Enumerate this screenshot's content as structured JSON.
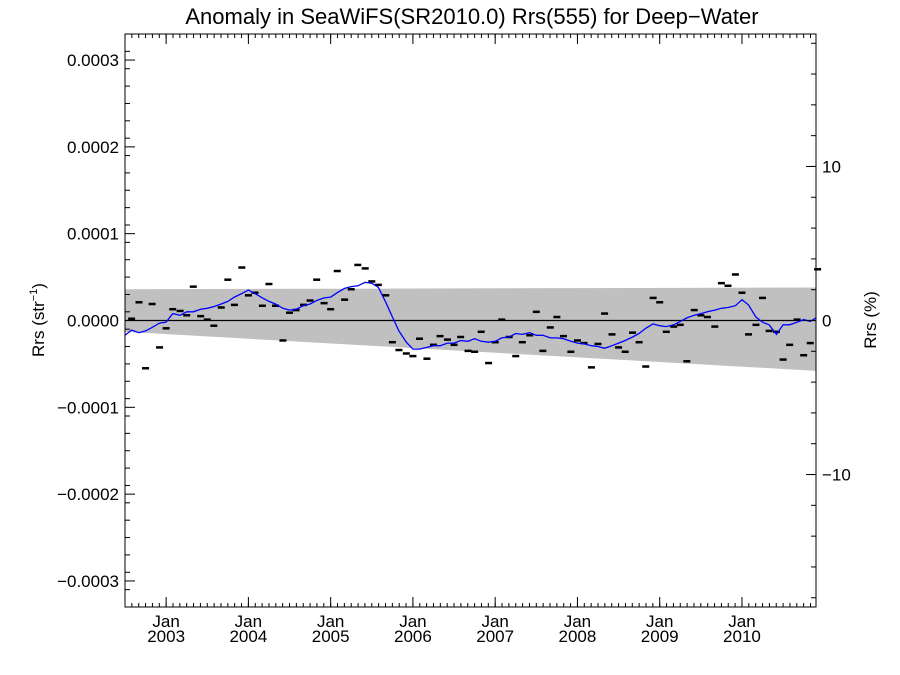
{
  "chart_data": {
    "type": "line",
    "title": "Anomaly in SeaWiFS(SR2010.0) Rrs(555) for Deep−Water",
    "ylabel_left_main": "Rrs (str",
    "ylabel_left_sup": "−1",
    "ylabel_left_close": ")",
    "ylabel_right": "Rrs (%)",
    "xlabel": "",
    "xlim": [
      2002.5,
      2010.9
    ],
    "ylim_left": [
      -0.00033,
      0.00033
    ],
    "ylim_right": [
      -18.6,
      18.6
    ],
    "yticks_left": [
      {
        "value": 0.0003,
        "label": "0.0003"
      },
      {
        "value": 0.0002,
        "label": "0.0002"
      },
      {
        "value": 0.0001,
        "label": "0.0001"
      },
      {
        "value": 0.0,
        "label": "0.0000"
      },
      {
        "value": -0.0001,
        "label": "−0.0001"
      },
      {
        "value": -0.0002,
        "label": "−0.0002"
      },
      {
        "value": -0.0003,
        "label": "−0.0003"
      }
    ],
    "yticks_right": [
      {
        "value": 10,
        "label": "10"
      },
      {
        "value": 0,
        "label": "0"
      },
      {
        "value": -10,
        "label": "−10"
      }
    ],
    "xticks": [
      {
        "value": 2003.0,
        "month": "Jan",
        "year": "2003"
      },
      {
        "value": 2004.0,
        "month": "Jan",
        "year": "2004"
      },
      {
        "value": 2005.0,
        "month": "Jan",
        "year": "2005"
      },
      {
        "value": 2006.0,
        "month": "Jan",
        "year": "2006"
      },
      {
        "value": 2007.0,
        "month": "Jan",
        "year": "2007"
      },
      {
        "value": 2008.0,
        "month": "Jan",
        "year": "2008"
      },
      {
        "value": 2009.0,
        "month": "Jan",
        "year": "2009"
      },
      {
        "value": 2010.0,
        "month": "Jan",
        "year": "2010"
      }
    ],
    "band": {
      "upper": [
        [
          2002.5,
          3.6e-05
        ],
        [
          2010.9,
          3.8e-05
        ]
      ],
      "lower": [
        [
          2002.5,
          -1.3e-05
        ],
        [
          2010.9,
          -5.8e-05
        ]
      ],
      "color": "#c0c0c0"
    },
    "zero_line": 0.0,
    "series": [
      {
        "marker": "dash",
        "color": "#000000",
        "points": [
          [
            2002.58,
            2e-06
          ],
          [
            2002.67,
            2.1e-05
          ],
          [
            2002.75,
            -5.5e-05
          ],
          [
            2002.83,
            1.9e-05
          ],
          [
            2002.92,
            -3.1e-05
          ],
          [
            2003.0,
            -9e-06
          ],
          [
            2003.08,
            1.3e-05
          ],
          [
            2003.17,
            1.1e-05
          ],
          [
            2003.25,
            6e-06
          ],
          [
            2003.33,
            3.9e-05
          ],
          [
            2003.42,
            5e-06
          ],
          [
            2003.5,
            1e-06
          ],
          [
            2003.58,
            -6e-06
          ],
          [
            2003.67,
            1.5e-05
          ],
          [
            2003.75,
            4.7e-05
          ],
          [
            2003.83,
            1.8e-05
          ],
          [
            2003.92,
            6.1e-05
          ],
          [
            2004.0,
            2.9e-05
          ],
          [
            2004.08,
            3.2e-05
          ],
          [
            2004.17,
            1.7e-05
          ],
          [
            2004.25,
            4.2e-05
          ],
          [
            2004.33,
            1.7e-05
          ],
          [
            2004.42,
            -2.3e-05
          ],
          [
            2004.5,
            9e-06
          ],
          [
            2004.58,
            1.2e-05
          ],
          [
            2004.67,
            1.8e-05
          ],
          [
            2004.75,
            2.3e-05
          ],
          [
            2004.83,
            4.7e-05
          ],
          [
            2004.92,
            2e-05
          ],
          [
            2005.0,
            1.3e-05
          ],
          [
            2005.08,
            5.7e-05
          ],
          [
            2005.17,
            2.4e-05
          ],
          [
            2005.25,
            3.6e-05
          ],
          [
            2005.33,
            6.4e-05
          ],
          [
            2005.42,
            6e-05
          ],
          [
            2005.5,
            4.5e-05
          ],
          [
            2005.58,
            4.1e-05
          ],
          [
            2005.67,
            2.9e-05
          ],
          [
            2005.75,
            -2.5e-05
          ],
          [
            2005.83,
            -3.4e-05
          ],
          [
            2005.92,
            -3.8e-05
          ],
          [
            2006.0,
            -4.1e-05
          ],
          [
            2006.08,
            -2.1e-05
          ],
          [
            2006.17,
            -4.4e-05
          ],
          [
            2006.25,
            -2.8e-05
          ],
          [
            2006.33,
            -1.8e-05
          ],
          [
            2006.42,
            -2.2e-05
          ],
          [
            2006.5,
            -2.8e-05
          ],
          [
            2006.58,
            -1.9e-05
          ],
          [
            2006.67,
            -3.5e-05
          ],
          [
            2006.75,
            -3.6e-05
          ],
          [
            2006.83,
            -1.3e-05
          ],
          [
            2006.92,
            -4.9e-05
          ],
          [
            2007.0,
            -2.5e-05
          ],
          [
            2007.08,
            1e-06
          ],
          [
            2007.17,
            -1.9e-05
          ],
          [
            2007.25,
            -4.1e-05
          ],
          [
            2007.33,
            -2.5e-05
          ],
          [
            2007.42,
            -1.7e-05
          ],
          [
            2007.5,
            1e-05
          ],
          [
            2007.58,
            -3.5e-05
          ],
          [
            2007.67,
            -8e-06
          ],
          [
            2007.75,
            4e-06
          ],
          [
            2007.83,
            -1.8e-05
          ],
          [
            2007.92,
            -3.6e-05
          ],
          [
            2008.0,
            -2.3e-05
          ],
          [
            2008.08,
            -2.6e-05
          ],
          [
            2008.17,
            -5.4e-05
          ],
          [
            2008.25,
            -2.7e-05
          ],
          [
            2008.33,
            8e-06
          ],
          [
            2008.42,
            -1.6e-05
          ],
          [
            2008.5,
            -3.1e-05
          ],
          [
            2008.58,
            -3.6e-05
          ],
          [
            2008.67,
            -1.4e-05
          ],
          [
            2008.75,
            -2.5e-05
          ],
          [
            2008.83,
            -5.3e-05
          ],
          [
            2008.92,
            2.6e-05
          ],
          [
            2009.0,
            2.1e-05
          ],
          [
            2009.08,
            -1.3e-05
          ],
          [
            2009.17,
            -7e-06
          ],
          [
            2009.25,
            -5e-06
          ],
          [
            2009.33,
            -4.7e-05
          ],
          [
            2009.42,
            1.2e-05
          ],
          [
            2009.5,
            6e-06
          ],
          [
            2009.58,
            4e-06
          ],
          [
            2009.67,
            -7e-06
          ],
          [
            2009.75,
            4.3e-05
          ],
          [
            2009.83,
            4e-05
          ],
          [
            2009.92,
            5.3e-05
          ],
          [
            2010.0,
            3.2e-05
          ],
          [
            2010.08,
            -1.6e-05
          ],
          [
            2010.17,
            -5e-06
          ],
          [
            2010.25,
            2.6e-05
          ],
          [
            2010.33,
            -1.2e-05
          ],
          [
            2010.42,
            -1.3e-05
          ],
          [
            2010.5,
            -4.5e-05
          ],
          [
            2010.58,
            -2.8e-05
          ],
          [
            2010.67,
            1e-06
          ],
          [
            2010.75,
            -4e-05
          ],
          [
            2010.83,
            -2.6e-05
          ],
          [
            2010.92,
            5.9e-05
          ]
        ]
      },
      {
        "marker": "line",
        "color": "#0000ff",
        "points": [
          [
            2002.5,
            -1.7e-05
          ],
          [
            2002.58,
            -1.1e-05
          ],
          [
            2002.67,
            -1.4e-05
          ],
          [
            2002.75,
            -1.2e-05
          ],
          [
            2002.83,
            -8e-06
          ],
          [
            2002.92,
            -3e-06
          ],
          [
            2003.0,
            -2e-06
          ],
          [
            2003.08,
            8e-06
          ],
          [
            2003.17,
            6e-06
          ],
          [
            2003.25,
            1e-05
          ],
          [
            2003.33,
            1e-05
          ],
          [
            2003.42,
            1.3e-05
          ],
          [
            2003.5,
            1.4e-05
          ],
          [
            2003.58,
            1.6e-05
          ],
          [
            2003.67,
            1.9e-05
          ],
          [
            2003.75,
            2.2e-05
          ],
          [
            2003.83,
            2.7e-05
          ],
          [
            2003.92,
            3.1e-05
          ],
          [
            2004.0,
            3.5e-05
          ],
          [
            2004.08,
            3.1e-05
          ],
          [
            2004.17,
            2.6e-05
          ],
          [
            2004.25,
            2.2e-05
          ],
          [
            2004.33,
            1.9e-05
          ],
          [
            2004.42,
            1.4e-05
          ],
          [
            2004.5,
            1.2e-05
          ],
          [
            2004.58,
            1.3e-05
          ],
          [
            2004.67,
            1.7e-05
          ],
          [
            2004.75,
            1.9e-05
          ],
          [
            2004.83,
            2.3e-05
          ],
          [
            2004.92,
            2.6e-05
          ],
          [
            2005.0,
            2.7e-05
          ],
          [
            2005.08,
            3.2e-05
          ],
          [
            2005.17,
            3.7e-05
          ],
          [
            2005.25,
            3.9e-05
          ],
          [
            2005.33,
            4e-05
          ],
          [
            2005.42,
            4.4e-05
          ],
          [
            2005.5,
            4.3e-05
          ],
          [
            2005.58,
            3.8e-05
          ],
          [
            2005.67,
            2.1e-05
          ],
          [
            2005.75,
            4e-06
          ],
          [
            2005.83,
            -1.2e-05
          ],
          [
            2005.92,
            -2.5e-05
          ],
          [
            2006.0,
            -3.3e-05
          ],
          [
            2006.08,
            -3.3e-05
          ],
          [
            2006.17,
            -3.1e-05
          ],
          [
            2006.25,
            -2.9e-05
          ],
          [
            2006.33,
            -2.9e-05
          ],
          [
            2006.42,
            -2.6e-05
          ],
          [
            2006.5,
            -2.6e-05
          ],
          [
            2006.58,
            -2.3e-05
          ],
          [
            2006.67,
            -2.4e-05
          ],
          [
            2006.75,
            -2.1e-05
          ],
          [
            2006.83,
            -2.4e-05
          ],
          [
            2006.92,
            -2.5e-05
          ],
          [
            2007.0,
            -2.4e-05
          ],
          [
            2007.08,
            -2e-05
          ],
          [
            2007.17,
            -1.9e-05
          ],
          [
            2007.25,
            -1.5e-05
          ],
          [
            2007.33,
            -1.6e-05
          ],
          [
            2007.42,
            -1.4e-05
          ],
          [
            2007.5,
            -1.7e-05
          ],
          [
            2007.58,
            -1.7e-05
          ],
          [
            2007.67,
            -2e-05
          ],
          [
            2007.75,
            -2e-05
          ],
          [
            2007.83,
            -2.1e-05
          ],
          [
            2007.92,
            -2.4e-05
          ],
          [
            2008.0,
            -2.6e-05
          ],
          [
            2008.08,
            -2.7e-05
          ],
          [
            2008.17,
            -2.9e-05
          ],
          [
            2008.25,
            -3e-05
          ],
          [
            2008.33,
            -3.2e-05
          ],
          [
            2008.42,
            -2.9e-05
          ],
          [
            2008.5,
            -2.6e-05
          ],
          [
            2008.58,
            -2.3e-05
          ],
          [
            2008.67,
            -1.9e-05
          ],
          [
            2008.75,
            -1.5e-05
          ],
          [
            2008.83,
            -9e-06
          ],
          [
            2008.92,
            -4e-06
          ],
          [
            2009.0,
            -6e-06
          ],
          [
            2009.08,
            -7e-06
          ],
          [
            2009.17,
            -5e-06
          ],
          [
            2009.25,
            -1e-06
          ],
          [
            2009.33,
            3e-06
          ],
          [
            2009.42,
            6e-06
          ],
          [
            2009.5,
            8e-06
          ],
          [
            2009.58,
            1e-05
          ],
          [
            2009.67,
            1.2e-05
          ],
          [
            2009.75,
            1.4e-05
          ],
          [
            2009.83,
            1.5e-05
          ],
          [
            2009.92,
            1.7e-05
          ],
          [
            2010.0,
            2.4e-05
          ],
          [
            2010.08,
            1.8e-05
          ],
          [
            2010.17,
            4e-06
          ],
          [
            2010.25,
            -2e-06
          ],
          [
            2010.33,
            -5e-06
          ],
          [
            2010.42,
            -1.6e-05
          ],
          [
            2010.5,
            -5e-06
          ],
          [
            2010.58,
            -5e-06
          ],
          [
            2010.67,
            -2e-06
          ],
          [
            2010.75,
            1e-06
          ],
          [
            2010.83,
            -1e-06
          ],
          [
            2010.9,
            3e-06
          ]
        ]
      }
    ],
    "grid": false,
    "legend": "none"
  }
}
